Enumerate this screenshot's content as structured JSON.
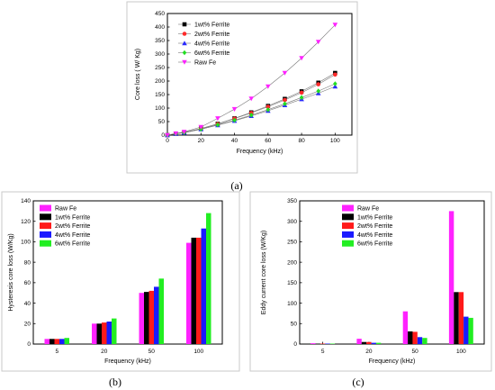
{
  "chart_data": [
    {
      "panel": "(a)",
      "type": "line",
      "xlabel": "Frequency (kHz)",
      "ylabel": "Core loss ( W/ Kg)",
      "xlim": [
        0,
        110
      ],
      "ylim": [
        0,
        450
      ],
      "xticks": [
        0,
        20,
        40,
        60,
        80,
        100
      ],
      "yticks": [
        0,
        50,
        100,
        150,
        200,
        250,
        300,
        350,
        400,
        450
      ],
      "legend_position": "top-left",
      "series": [
        {
          "name": "1wt% Ferrite",
          "color": "#000000",
          "marker": "square",
          "x": [
            0,
            5,
            10,
            20,
            30,
            40,
            50,
            60,
            70,
            80,
            90,
            100
          ],
          "y": [
            0,
            5,
            10,
            24,
            42,
            62,
            84,
            108,
            134,
            162,
            194,
            230
          ]
        },
        {
          "name": "2wt% Ferrite",
          "color": "#ff2a2a",
          "marker": "circle",
          "x": [
            0,
            5,
            10,
            20,
            30,
            40,
            50,
            60,
            70,
            80,
            90,
            100
          ],
          "y": [
            0,
            5,
            10,
            24,
            41,
            61,
            82,
            105,
            130,
            157,
            188,
            224
          ]
        },
        {
          "name": "4wt% Ferrite",
          "color": "#2a2aff",
          "marker": "triangle-up",
          "x": [
            0,
            5,
            10,
            20,
            30,
            40,
            50,
            60,
            70,
            80,
            90,
            100
          ],
          "y": [
            0,
            5,
            9,
            22,
            37,
            53,
            71,
            90,
            111,
            133,
            155,
            180
          ]
        },
        {
          "name": "6wt% Ferrite",
          "color": "#22dd22",
          "marker": "diamond",
          "x": [
            0,
            5,
            10,
            20,
            30,
            40,
            50,
            60,
            70,
            80,
            90,
            100
          ],
          "y": [
            0,
            5,
            9,
            22,
            38,
            55,
            74,
            94,
            116,
            139,
            163,
            190
          ]
        },
        {
          "name": "Raw Fe",
          "color": "#ff22ff",
          "marker": "triangle-down",
          "x": [
            0,
            5,
            10,
            20,
            30,
            40,
            50,
            60,
            70,
            80,
            90,
            100
          ],
          "y": [
            0,
            6,
            12,
            30,
            62,
            96,
            135,
            180,
            230,
            285,
            345,
            408
          ]
        }
      ]
    },
    {
      "panel": "(b)",
      "type": "bar",
      "xlabel": "Frequency (kHz)",
      "ylabel": "Hysteresis core loss (W/Kg)",
      "ylim": [
        0,
        140
      ],
      "yticks": [
        0,
        20,
        40,
        60,
        80,
        100,
        120,
        140
      ],
      "categories": [
        "5",
        "20",
        "50",
        "100"
      ],
      "legend_position": "top-left",
      "series": [
        {
          "name": "Raw Fe",
          "color": "#ff22ff",
          "values": [
            5,
            20,
            50,
            99
          ]
        },
        {
          "name": "1wt% Ferrite",
          "color": "#000000",
          "values": [
            5,
            20,
            51,
            104
          ]
        },
        {
          "name": "2wt% Ferrite",
          "color": "#ff1a1a",
          "values": [
            5,
            21,
            52,
            104
          ]
        },
        {
          "name": "4wt% Ferrite",
          "color": "#1a1aff",
          "values": [
            5,
            22,
            56,
            113
          ]
        },
        {
          "name": "6wt% Ferrite",
          "color": "#22ee22",
          "values": [
            6,
            25,
            64,
            128
          ]
        }
      ]
    },
    {
      "panel": "(c)",
      "type": "bar",
      "xlabel": "Frequency (kHz)",
      "ylabel": "Eddy current core loss (W/Kg)",
      "ylim": [
        0,
        350
      ],
      "yticks": [
        0,
        50,
        100,
        150,
        200,
        250,
        300,
        350
      ],
      "categories": [
        "5",
        "20",
        "50",
        "100"
      ],
      "legend_position": "top-right",
      "series": [
        {
          "name": "Raw Fe",
          "color": "#ff22ff",
          "values": [
            2,
            13,
            80,
            325
          ]
        },
        {
          "name": "1wt% Ferrite",
          "color": "#000000",
          "values": [
            1,
            5,
            31,
            127
          ]
        },
        {
          "name": "2wt% Ferrite",
          "color": "#ff1a1a",
          "values": [
            1,
            5,
            30,
            127
          ]
        },
        {
          "name": "4wt% Ferrite",
          "color": "#1a1aff",
          "values": [
            1,
            3,
            17,
            67
          ]
        },
        {
          "name": "6wt% Ferrite",
          "color": "#22ee22",
          "values": [
            1,
            3,
            15,
            64
          ]
        }
      ]
    }
  ]
}
